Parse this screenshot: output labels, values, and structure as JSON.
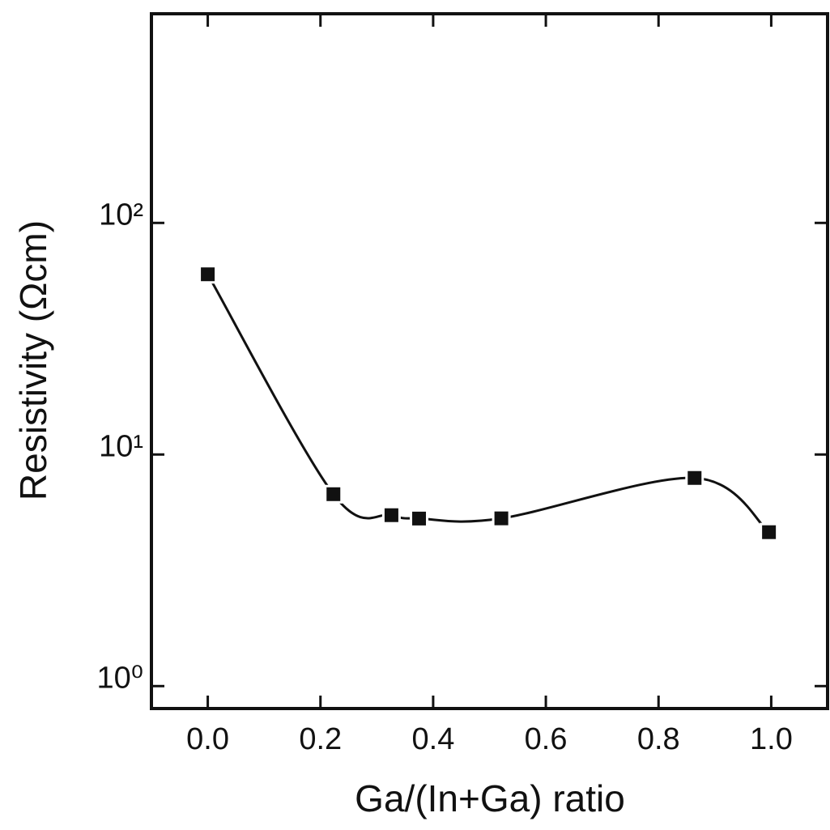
{
  "chart_data": {
    "type": "scatter",
    "x_label": "Ga/(In+Ga) ratio",
    "y_label": "Resistivity (Ωcm)",
    "xlim": [
      -0.1,
      1.1
    ],
    "xticks": [
      {
        "value": 0,
        "label": "0.0"
      },
      0.2,
      0.4,
      0.6,
      0.8,
      {
        "value": 1,
        "label": "1.0"
      }
    ],
    "ylim": [
      0.8,
      800
    ],
    "yticks": [
      {
        "value": 1,
        "label": "10⁰"
      },
      {
        "value": 10,
        "label": "10¹"
      },
      {
        "value": 100,
        "label": "10²"
      }
    ],
    "y_scale": "log",
    "series": [
      {
        "color": "#111111",
        "x": [
          0.0,
          0.223,
          0.326,
          0.375,
          0.521,
          0.864,
          0.996
        ],
        "values": [
          60,
          6.74,
          5.47,
          5.29,
          5.3,
          7.92,
          4.62
        ]
      }
    ]
  }
}
